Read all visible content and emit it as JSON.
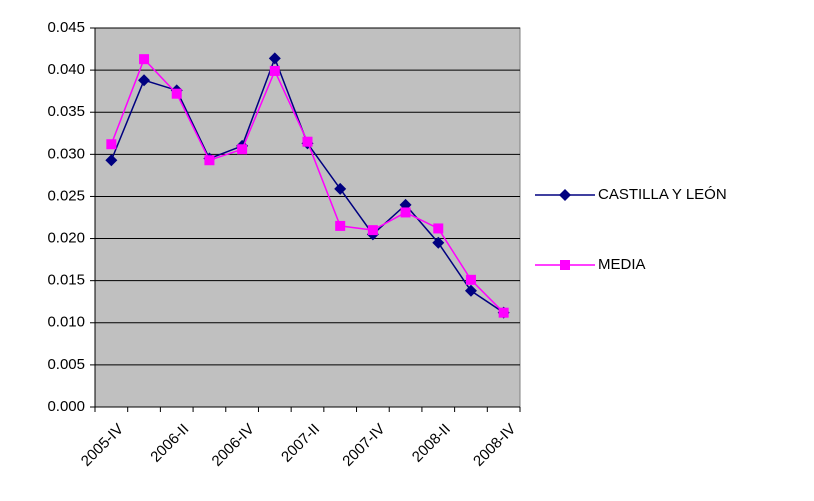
{
  "chart_data": {
    "type": "line",
    "categories": [
      "2005-IV",
      null,
      "2006-II",
      null,
      "2006-IV",
      null,
      "2007-II",
      null,
      "2007-IV",
      null,
      "2008-II",
      null,
      "2008-IV"
    ],
    "series": [
      {
        "name": "CASTILLA Y LEÓN",
        "color": "#000080",
        "marker": "diamond",
        "values": [
          0.0293,
          0.0388,
          0.0376,
          0.0295,
          0.031,
          0.0414,
          0.0313,
          0.0259,
          0.0205,
          0.024,
          0.0195,
          0.0138,
          0.0112
        ]
      },
      {
        "name": "MEDIA",
        "color": "#ff00ff",
        "marker": "square",
        "values": [
          0.0312,
          0.0413,
          0.0372,
          0.0293,
          0.0306,
          0.0399,
          0.0315,
          0.0215,
          0.021,
          0.0231,
          0.0212,
          0.0151,
          0.0112
        ]
      }
    ],
    "ylim": [
      0,
      0.045
    ],
    "yticks": [
      {
        "value": 0,
        "label": "0.000"
      },
      {
        "value": 0.005,
        "label": "0.005"
      },
      {
        "value": 0.01,
        "label": "0.010"
      },
      {
        "value": 0.015,
        "label": "0.015"
      },
      {
        "value": 0.02,
        "label": "0.020"
      },
      {
        "value": 0.025,
        "label": "0.025"
      },
      {
        "value": 0.03,
        "label": "0.030"
      },
      {
        "value": 0.035,
        "label": "0.035"
      },
      {
        "value": 0.04,
        "label": "0.040"
      },
      {
        "value": 0.045,
        "label": "0.045"
      }
    ],
    "grid": true,
    "plot_background": "#c0c0c0",
    "legend": "right"
  }
}
